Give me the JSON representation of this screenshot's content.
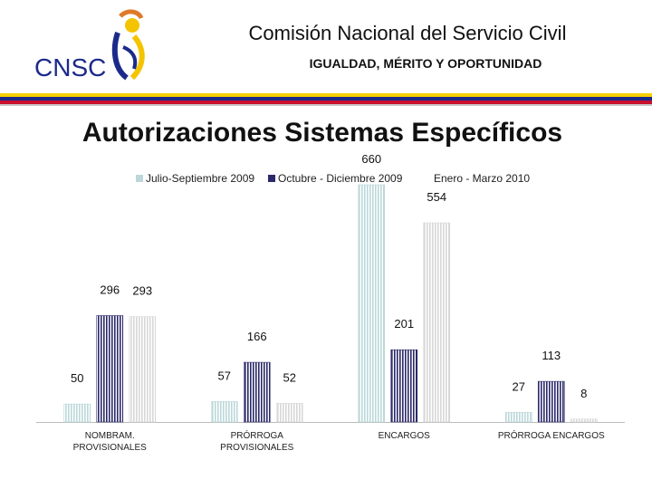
{
  "header": {
    "org_name": "Comisión Nacional del Servicio Civil",
    "slogan": "IGUALDAD, MÉRITO Y OPORTUNIDAD",
    "logo_text": "CNSC"
  },
  "colors": {
    "series1": "#bcd7da",
    "series2": "#2b2a6a",
    "series3": "#d7d7d7",
    "stripe_yellow": "#f5d000",
    "stripe_blue": "#1b2a8a",
    "stripe_red": "#c8102e"
  },
  "chart_data": {
    "type": "bar",
    "title": "Autorizaciones Sistemas Específicos",
    "categories": [
      "NOMBRAM. PROVISIONALES",
      "PRÓRROGA PROVISIONALES",
      "ENCARGOS",
      "PRÓRROGA ENCARGOS"
    ],
    "series": [
      {
        "name": "Julio-Septiembre 2009",
        "values": [
          50,
          57,
          660,
          27
        ]
      },
      {
        "name": "Octubre - Diciembre 2009",
        "values": [
          296,
          166,
          201,
          113
        ]
      },
      {
        "name": "Enero - Marzo 2010",
        "values": [
          293,
          52,
          554,
          8
        ]
      }
    ],
    "xlabel": "",
    "ylabel": "",
    "ylim": [
      0,
      660
    ],
    "grid": false,
    "legend": "top"
  }
}
